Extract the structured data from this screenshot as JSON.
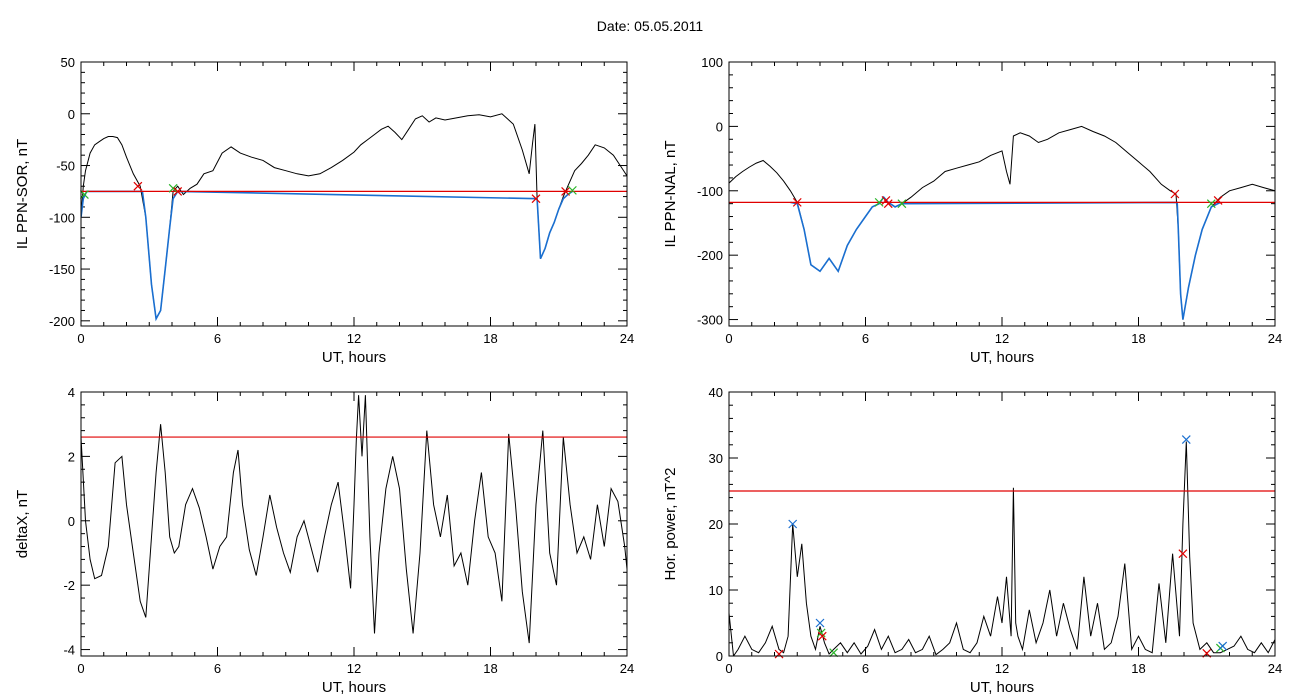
{
  "page": {
    "title_prefix": "Date:",
    "date": "05.05.2011",
    "title": "Date:  05.05.2011"
  },
  "colors": {
    "axis": "#000000",
    "data_line": "#000000",
    "threshold": "#e00000",
    "highlight": "#1a6fd0",
    "cross_red": "#e00000",
    "cross_green": "#28b428",
    "cross_blue": "#1a6fd0"
  },
  "chart_data": [
    {
      "type": "line",
      "panel": "top-left",
      "xlabel": "UT, hours",
      "ylabel": "IL PPN-SOR, nT",
      "xlim": [
        0,
        24
      ],
      "ylim": [
        -205,
        50
      ],
      "xticks": [
        0,
        6,
        12,
        18,
        24
      ],
      "yticks": [
        50,
        0,
        -50,
        -100,
        -150,
        -200
      ],
      "threshold": -75,
      "series": [
        {
          "style": "black",
          "x": [
            0,
            0.1,
            0.2,
            0.4,
            0.6,
            0.8,
            1,
            1.2,
            1.4,
            1.6,
            1.8,
            2,
            2.3,
            2.6,
            2.85,
            3.1,
            3.3,
            3.5,
            3.7,
            3.9,
            4.05,
            4.25,
            4.5,
            4.8,
            5.1,
            5.4,
            5.8,
            6.2,
            6.6,
            7,
            7.5,
            8,
            8.5,
            9,
            9.5,
            10,
            10.5,
            11,
            11.5,
            12,
            12.3,
            12.6,
            12.9,
            13.2,
            13.5,
            13.8,
            14.1,
            14.4,
            14.7,
            15,
            15.3,
            15.6,
            16,
            16.5,
            17,
            17.5,
            18,
            18.5,
            19,
            19.4,
            19.7,
            19.85,
            19.95,
            20.05,
            20.2,
            20.4,
            20.6,
            20.8,
            21,
            21.2,
            21.4,
            21.7,
            22,
            22.3,
            22.6,
            23,
            23.4,
            23.7,
            24
          ],
          "y": [
            -100,
            -70,
            -55,
            -38,
            -30,
            -27,
            -24,
            -22,
            -22,
            -23,
            -30,
            -42,
            -58,
            -70,
            -100,
            -165,
            -198,
            -190,
            -150,
            -110,
            -75,
            -70,
            -78,
            -72,
            -68,
            -58,
            -55,
            -38,
            -32,
            -38,
            -42,
            -45,
            -52,
            -55,
            -58,
            -60,
            -58,
            -52,
            -45,
            -37,
            -30,
            -25,
            -20,
            -15,
            -12,
            -18,
            -25,
            -15,
            -5,
            -2,
            -8,
            -4,
            -6,
            -4,
            -2,
            -1,
            -3,
            0,
            -10,
            -35,
            -58,
            -28,
            -10,
            -82,
            -140,
            -130,
            -115,
            -105,
            -92,
            -80,
            -70,
            -55,
            -48,
            -40,
            -30,
            -33,
            -40,
            -50,
            -60
          ]
        },
        {
          "style": "blue",
          "x": [
            0,
            0.1,
            0.25,
            2.7,
            2.85,
            3.1,
            3.3,
            3.5,
            3.7,
            3.9,
            4.05,
            4.25,
            20.05,
            20.2,
            20.4,
            20.6,
            20.8,
            21,
            21.2,
            21.4,
            21.6
          ],
          "y": [
            -100,
            -82,
            -75,
            -75,
            -100,
            -165,
            -198,
            -190,
            -150,
            -110,
            -82,
            -75,
            -82,
            -140,
            -130,
            -115,
            -105,
            -92,
            -82,
            -78,
            -75
          ]
        }
      ],
      "markers": [
        {
          "x": 0.15,
          "y": -78,
          "color": "green"
        },
        {
          "x": 2.5,
          "y": -70,
          "color": "red"
        },
        {
          "x": 4.05,
          "y": -72,
          "color": "green"
        },
        {
          "x": 4.25,
          "y": -75,
          "color": "red"
        },
        {
          "x": 20.0,
          "y": -82,
          "color": "red"
        },
        {
          "x": 21.3,
          "y": -75,
          "color": "red"
        },
        {
          "x": 21.6,
          "y": -74,
          "color": "green"
        }
      ]
    },
    {
      "type": "line",
      "panel": "top-right",
      "xlabel": "UT, hours",
      "ylabel": "IL PPN-NAL, nT",
      "xlim": [
        0,
        24
      ],
      "ylim": [
        -310,
        100
      ],
      "xticks": [
        0,
        6,
        12,
        18,
        24
      ],
      "yticks": [
        100,
        0,
        -100,
        -200,
        -300
      ],
      "threshold": -118,
      "series": [
        {
          "style": "black",
          "x": [
            0,
            0.3,
            0.6,
            0.9,
            1.2,
            1.5,
            1.8,
            2.1,
            2.4,
            2.7,
            3.0,
            3.3,
            3.6,
            4.0,
            4.4,
            4.8,
            5.2,
            5.6,
            6.0,
            6.3,
            6.6,
            6.8,
            7.0,
            7.3,
            7.6,
            8.0,
            8.5,
            9,
            9.5,
            10,
            10.5,
            11,
            11.5,
            12,
            12.2,
            12.35,
            12.5,
            12.8,
            13.2,
            13.6,
            14,
            14.5,
            15,
            15.5,
            16,
            16.5,
            17,
            17.5,
            18,
            18.5,
            19,
            19.4,
            19.65,
            19.75,
            19.85,
            19.95,
            20.2,
            20.5,
            20.8,
            21.2,
            21.6,
            22,
            22.5,
            23,
            23.5,
            24
          ],
          "y": [
            -88,
            -78,
            -70,
            -63,
            -57,
            -53,
            -62,
            -72,
            -85,
            -100,
            -118,
            -160,
            -215,
            -225,
            -205,
            -225,
            -185,
            -160,
            -140,
            -125,
            -120,
            -110,
            -118,
            -125,
            -120,
            -110,
            -95,
            -85,
            -70,
            -65,
            -60,
            -55,
            -45,
            -38,
            -70,
            -90,
            -15,
            -10,
            -15,
            -25,
            -20,
            -10,
            -5,
            0,
            -8,
            -15,
            -25,
            -40,
            -55,
            -70,
            -90,
            -100,
            -105,
            -160,
            -260,
            -300,
            -250,
            -200,
            -160,
            -125,
            -110,
            -100,
            -95,
            -90,
            -95,
            -100
          ]
        },
        {
          "style": "blue",
          "x": [
            2.7,
            3.0,
            3.3,
            3.6,
            4.0,
            4.4,
            4.8,
            5.2,
            5.6,
            6.0,
            6.3,
            6.6,
            6.8,
            7.0,
            7.3,
            7.6,
            19.7,
            19.75,
            19.85,
            19.95,
            20.2,
            20.5,
            20.8,
            21.2,
            21.6
          ],
          "y": [
            -118,
            -120,
            -160,
            -215,
            -225,
            -205,
            -225,
            -185,
            -160,
            -140,
            -125,
            -120,
            -110,
            -118,
            -125,
            -120,
            -118,
            -160,
            -260,
            -300,
            -250,
            -200,
            -160,
            -125,
            -118
          ]
        }
      ],
      "markers": [
        {
          "x": 3.0,
          "y": -118,
          "color": "red"
        },
        {
          "x": 6.6,
          "y": -118,
          "color": "green"
        },
        {
          "x": 6.9,
          "y": -115,
          "color": "red"
        },
        {
          "x": 7.0,
          "y": -120,
          "color": "red"
        },
        {
          "x": 7.6,
          "y": -120,
          "color": "green"
        },
        {
          "x": 19.6,
          "y": -105,
          "color": "red"
        },
        {
          "x": 21.2,
          "y": -120,
          "color": "green"
        },
        {
          "x": 21.5,
          "y": -115,
          "color": "red"
        }
      ]
    },
    {
      "type": "line",
      "panel": "bottom-left",
      "xlabel": "UT, hours",
      "ylabel": "deltaX, nT",
      "xlim": [
        0,
        24
      ],
      "ylim": [
        -4.2,
        4
      ],
      "xticks": [
        0,
        6,
        12,
        18,
        24
      ],
      "yticks": [
        4,
        2,
        0,
        -2,
        -4
      ],
      "threshold": 2.6,
      "series": [
        {
          "style": "black",
          "x": [
            0,
            0.2,
            0.4,
            0.6,
            0.9,
            1.2,
            1.5,
            1.8,
            2.0,
            2.3,
            2.6,
            2.85,
            3.1,
            3.3,
            3.5,
            3.7,
            3.9,
            4.1,
            4.3,
            4.6,
            4.9,
            5.2,
            5.5,
            5.8,
            6.1,
            6.4,
            6.7,
            6.9,
            7.1,
            7.4,
            7.7,
            8.0,
            8.3,
            8.6,
            8.9,
            9.2,
            9.5,
            9.8,
            10.1,
            10.4,
            10.7,
            11.0,
            11.3,
            11.6,
            11.85,
            12.0,
            12.1,
            12.2,
            12.35,
            12.5,
            12.7,
            12.9,
            13.1,
            13.4,
            13.7,
            14.0,
            14.3,
            14.6,
            14.9,
            15.2,
            15.5,
            15.8,
            16.1,
            16.4,
            16.7,
            17.0,
            17.3,
            17.6,
            17.9,
            18.2,
            18.5,
            18.8,
            19.1,
            19.4,
            19.7,
            20.0,
            20.3,
            20.6,
            20.9,
            21.2,
            21.5,
            21.8,
            22.1,
            22.4,
            22.7,
            23.0,
            23.3,
            23.6,
            23.9,
            24
          ],
          "y": [
            2.6,
            0,
            -1.2,
            -1.8,
            -1.7,
            -0.8,
            1.8,
            2.0,
            0.5,
            -1.0,
            -2.5,
            -3.0,
            -0.5,
            1.5,
            3.0,
            1.5,
            -0.5,
            -1.0,
            -0.8,
            0.5,
            1.0,
            0.4,
            -0.5,
            -1.5,
            -0.8,
            -0.5,
            1.5,
            2.2,
            0.5,
            -0.9,
            -1.7,
            -0.5,
            0.8,
            -0.2,
            -1.0,
            -1.6,
            -0.5,
            0.0,
            -0.8,
            -1.6,
            -0.5,
            0.5,
            1.2,
            -0.5,
            -2.1,
            0.5,
            2.5,
            3.9,
            2.0,
            3.9,
            -0.5,
            -3.5,
            -1.0,
            1.0,
            2.0,
            1.0,
            -1.5,
            -3.5,
            -1.0,
            2.8,
            0.5,
            -0.5,
            0.8,
            -1.4,
            -1.0,
            -2.0,
            0.0,
            1.5,
            -0.5,
            -1.0,
            -2.5,
            2.7,
            0.5,
            -2.2,
            -3.8,
            0.5,
            2.8,
            -1.0,
            -2.0,
            2.6,
            0.5,
            -1.0,
            -0.5,
            -1.2,
            0.5,
            -0.8,
            1.0,
            0.6,
            -0.8,
            -1.5
          ]
        }
      ],
      "markers": []
    },
    {
      "type": "line",
      "panel": "bottom-right",
      "xlabel": "UT, hours",
      "ylabel": "Hor. power, nT^2",
      "xlim": [
        0,
        24
      ],
      "ylim": [
        0,
        40
      ],
      "xticks": [
        0,
        6,
        12,
        18,
        24
      ],
      "yticks": [
        40,
        30,
        20,
        10,
        0
      ],
      "threshold": 25,
      "series": [
        {
          "style": "black",
          "x": [
            0,
            0.2,
            0.4,
            0.7,
            1.0,
            1.3,
            1.6,
            1.9,
            2.2,
            2.4,
            2.6,
            2.8,
            3.0,
            3.2,
            3.4,
            3.6,
            3.8,
            4.0,
            4.2,
            4.4,
            4.6,
            4.9,
            5.2,
            5.5,
            5.8,
            6.1,
            6.4,
            6.7,
            7.0,
            7.3,
            7.6,
            7.9,
            8.2,
            8.5,
            8.8,
            9.1,
            9.4,
            9.7,
            10.0,
            10.3,
            10.6,
            10.9,
            11.2,
            11.5,
            11.8,
            12.0,
            12.2,
            12.4,
            12.5,
            12.6,
            12.7,
            12.9,
            13.2,
            13.5,
            13.8,
            14.1,
            14.4,
            14.7,
            15.0,
            15.3,
            15.6,
            15.9,
            16.2,
            16.5,
            16.8,
            17.1,
            17.4,
            17.7,
            18.0,
            18.3,
            18.6,
            18.9,
            19.2,
            19.5,
            19.8,
            19.95,
            20.1,
            20.25,
            20.4,
            20.7,
            21.0,
            21.3,
            21.6,
            21.9,
            22.2,
            22.5,
            22.8,
            23.1,
            23.4,
            23.7,
            24
          ],
          "y": [
            6.5,
            0,
            1,
            3,
            1,
            0.5,
            2,
            4.5,
            1,
            0.5,
            3,
            20,
            12,
            17,
            8,
            3,
            1,
            4.5,
            2,
            0.3,
            1,
            2,
            0.5,
            2,
            0.3,
            1.5,
            4,
            1,
            3,
            0.5,
            1,
            2.5,
            0.5,
            1,
            3,
            0.2,
            1,
            2,
            5,
            1,
            0.5,
            2,
            6,
            3,
            9,
            5,
            12,
            3,
            25.5,
            5,
            3,
            1,
            7,
            2,
            5,
            10,
            3,
            8,
            4,
            1,
            12,
            3,
            8,
            1,
            2,
            6,
            14,
            1,
            3,
            1,
            0.5,
            11,
            2,
            15.5,
            3,
            20,
            32.5,
            15,
            5,
            1,
            2,
            0.5,
            0.5,
            1,
            1.5,
            3,
            1,
            0.5,
            2,
            0.5,
            2.5
          ]
        }
      ],
      "markers": [
        {
          "x": 2.2,
          "y": 0.3,
          "color": "red"
        },
        {
          "x": 2.8,
          "y": 20,
          "color": "blue"
        },
        {
          "x": 4.0,
          "y": 5,
          "color": "blue"
        },
        {
          "x": 4.05,
          "y": 3.5,
          "color": "green"
        },
        {
          "x": 4.1,
          "y": 3,
          "color": "red"
        },
        {
          "x": 4.6,
          "y": 0.5,
          "color": "green"
        },
        {
          "x": 19.95,
          "y": 15.5,
          "color": "red"
        },
        {
          "x": 20.1,
          "y": 32.8,
          "color": "blue"
        },
        {
          "x": 21.0,
          "y": 0.4,
          "color": "red"
        },
        {
          "x": 21.6,
          "y": 1.2,
          "color": "green"
        },
        {
          "x": 21.7,
          "y": 1.5,
          "color": "blue"
        }
      ]
    }
  ]
}
